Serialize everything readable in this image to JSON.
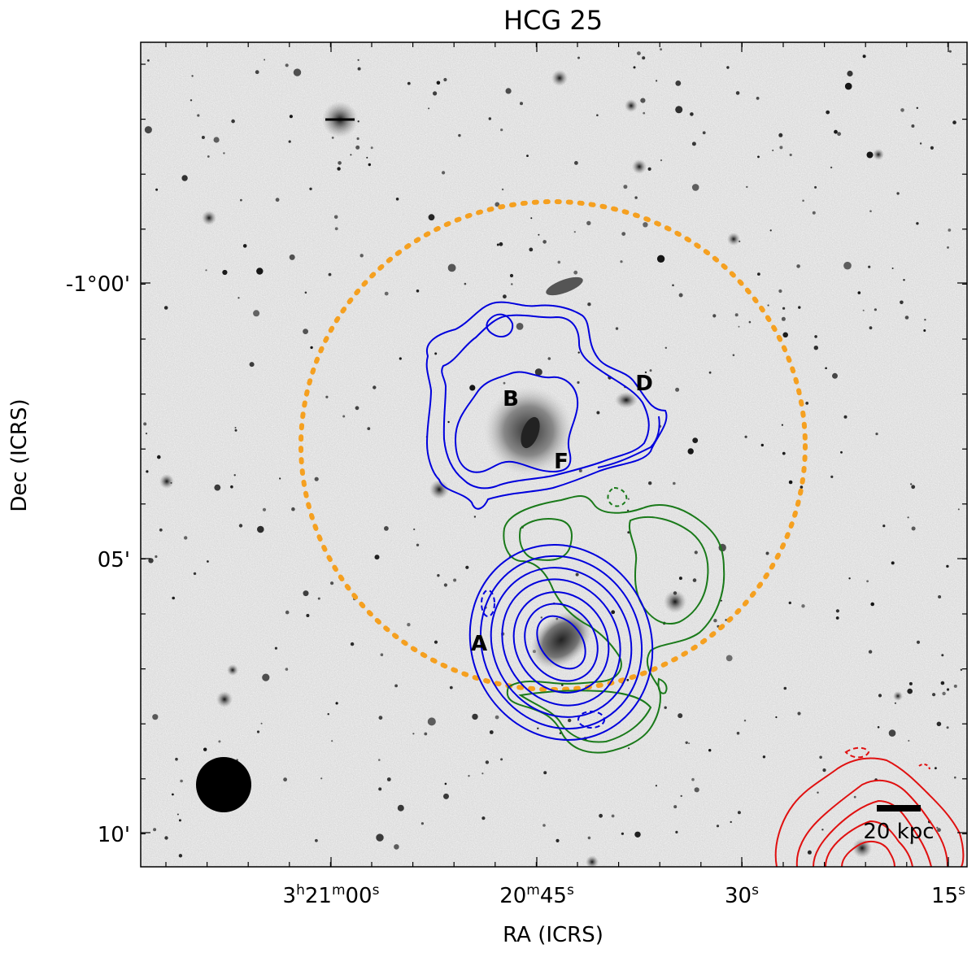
{
  "figure": {
    "title": "HCG 25",
    "xlabel": "RA (ICRS)",
    "ylabel": "Dec (ICRS)",
    "x_ticks": [
      {
        "main": "3",
        "sup1": "h",
        "mid": "21",
        "sup2": "m",
        "end": "00",
        "sup3": "s"
      },
      {
        "main": "20",
        "sup1": "m",
        "mid": "45",
        "sup2": "s"
      },
      {
        "main": "30",
        "sup1": "s"
      },
      {
        "main": "15",
        "sup1": "s"
      }
    ],
    "y_ticks": [
      "-1°00'",
      "05'",
      "10'"
    ],
    "galaxy_labels": [
      "A",
      "B",
      "D",
      "F"
    ],
    "scale_bar": "20 kpc",
    "colors": {
      "blue_contours": "#0000dd",
      "green_contours": "#1a7a1a",
      "red_contours": "#e01010",
      "circle": "#f5a020",
      "beam": "#000000"
    }
  }
}
